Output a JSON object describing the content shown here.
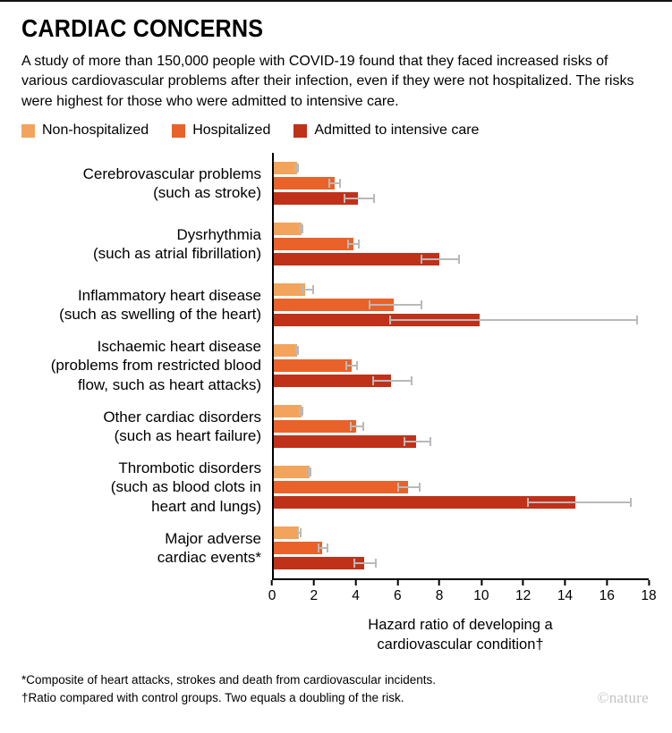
{
  "title": "CARDIAC CONCERNS",
  "intro": "A study of more than 150,000 people with COVID-19 found that they faced increased risks of various cardiovascular problems after their infection, even if they were not hospitalized. The risks were highest for those who were admitted to intensive care.",
  "legend": [
    {
      "label": "Non-hospitalized",
      "color": "#F2A45C"
    },
    {
      "label": "Hospitalized",
      "color": "#E8622A"
    },
    {
      "label": "Admitted to intensive care",
      "color": "#C0311A"
    }
  ],
  "chart_data": {
    "type": "bar",
    "orientation": "horizontal",
    "title": "CARDIAC CONCERNS",
    "xlabel": "Hazard ratio of developing a cardiovascular condition†",
    "xlim": [
      0,
      18
    ],
    "xticks": [
      0,
      2,
      4,
      6,
      8,
      10,
      12,
      14,
      16,
      18
    ],
    "grid": false,
    "legend_position": "top",
    "categories": [
      {
        "lines": [
          "Cerebrovascular problems",
          "(such as stroke)"
        ]
      },
      {
        "lines": [
          "Dysrhythmia",
          "(such as atrial fibrillation)"
        ]
      },
      {
        "lines": [
          "Inflammatory heart disease",
          "(such as swelling of the heart)"
        ]
      },
      {
        "lines": [
          "Ischaemic heart disease",
          "(problems from restricted blood",
          "flow, such as heart attacks)"
        ]
      },
      {
        "lines": [
          "Other cardiac disorders",
          "(such as heart failure)"
        ]
      },
      {
        "lines": [
          "Thrombotic disorders",
          "(such as blood clots in",
          "heart and lungs)"
        ]
      },
      {
        "lines": [
          "Major adverse",
          "cardiac events*"
        ]
      }
    ],
    "series": [
      {
        "name": "Non-hospitalized",
        "color": "#F2A45C",
        "values": [
          1.2,
          1.4,
          1.6,
          1.2,
          1.4,
          1.8,
          1.3
        ],
        "ci": [
          [
            1.1,
            1.3
          ],
          [
            1.3,
            1.5
          ],
          [
            1.4,
            2.0
          ],
          [
            1.1,
            1.3
          ],
          [
            1.3,
            1.5
          ],
          [
            1.7,
            1.9
          ],
          [
            1.2,
            1.4
          ]
        ]
      },
      {
        "name": "Hospitalized",
        "color": "#E8622A",
        "values": [
          3.0,
          3.9,
          5.8,
          3.8,
          4.0,
          6.5,
          2.4
        ],
        "ci": [
          [
            2.7,
            3.3
          ],
          [
            3.6,
            4.2
          ],
          [
            4.6,
            7.2
          ],
          [
            3.5,
            4.1
          ],
          [
            3.7,
            4.4
          ],
          [
            6.0,
            7.1
          ],
          [
            2.2,
            2.7
          ]
        ]
      },
      {
        "name": "Admitted to intensive care",
        "color": "#C0311A",
        "values": [
          4.1,
          8.0,
          9.9,
          5.7,
          6.9,
          14.5,
          4.4
        ],
        "ci": [
          [
            3.4,
            4.9
          ],
          [
            7.1,
            9.0
          ],
          [
            5.6,
            17.5
          ],
          [
            4.8,
            6.7
          ],
          [
            6.3,
            7.6
          ],
          [
            12.2,
            17.2
          ],
          [
            3.9,
            5.0
          ]
        ]
      }
    ]
  },
  "footnotes": [
    "*Composite of heart attacks, strokes and death from cardiovascular incidents.",
    "†Ratio compared with control groups. Two equals a doubling of the risk."
  ],
  "credit": "©nature"
}
